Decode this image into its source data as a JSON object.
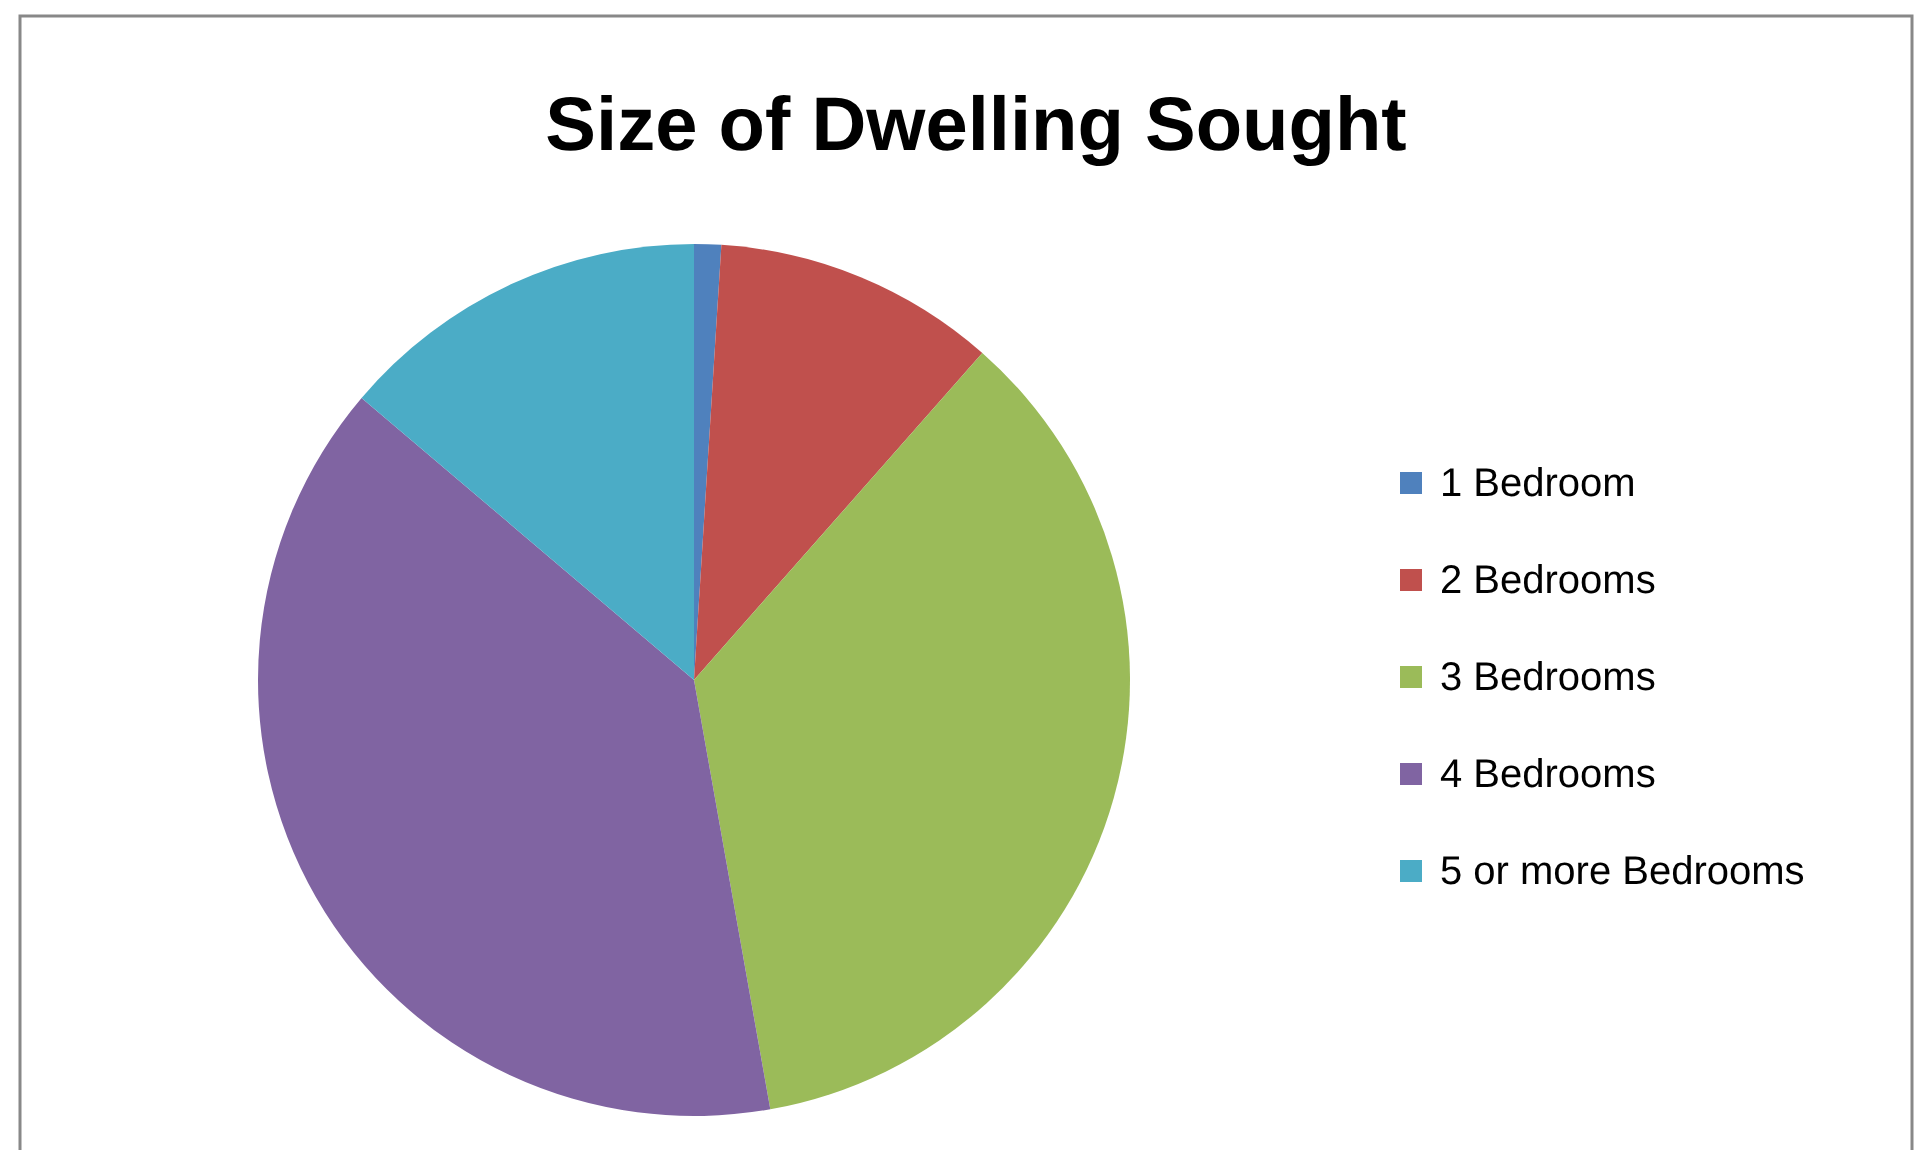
{
  "chart_data": {
    "type": "pie",
    "title": "Size of Dwelling Sought",
    "categories": [
      "1 Bedroom",
      "2 Bedrooms",
      "3 Bedrooms",
      "4 Bedrooms",
      "5 or more Bedrooms"
    ],
    "values": [
      1,
      10.5,
      35.7,
      39,
      13.8
    ],
    "colors": [
      "#4f81bd",
      "#c0504d",
      "#9bbb59",
      "#8064a2",
      "#4bacc6"
    ],
    "legend": "right"
  }
}
